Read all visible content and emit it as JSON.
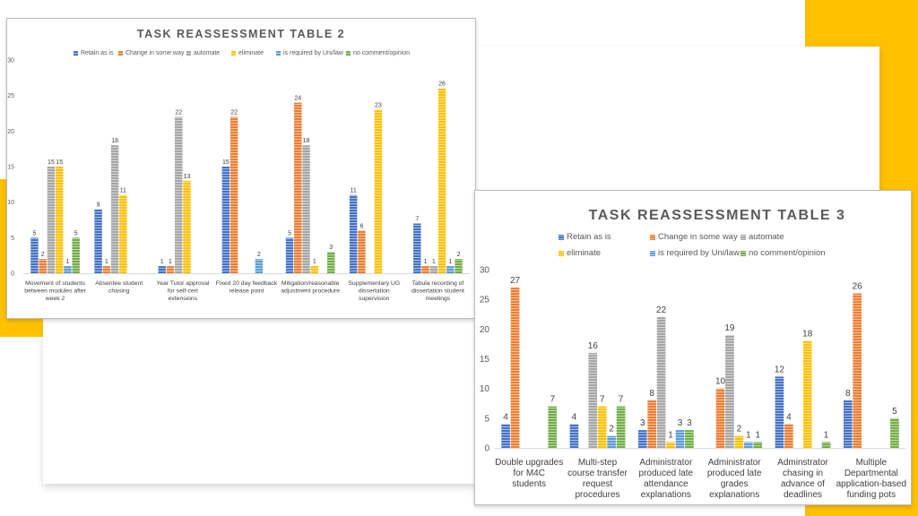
{
  "colors": {
    "retain": "#4472C4",
    "change": "#ED7D31",
    "automate": "#A5A5A5",
    "eliminate": "#FFC000",
    "required": "#5B9BD5",
    "nocomment": "#70AD47",
    "accent": "#FFC000"
  },
  "chart_data": [
    {
      "type": "bar",
      "title": "TASK REASSESSMENT TABLE 2",
      "xlabel": "",
      "ylabel": "",
      "ylim": [
        0,
        30
      ],
      "yticks": [
        0,
        5,
        10,
        15,
        20,
        25,
        30
      ],
      "grid": false,
      "legend_position": "top",
      "categories": [
        "Movement of students between modules after week 2",
        "Absentee student chasing",
        "Year Tutor approval for self-cert extensions",
        "Fixed 20 day feedback release point",
        "Mitigation/reasonable adjustment procedure",
        "Supplementary UG dissertation supervision",
        "Tabula recording of dissertation student meetings"
      ],
      "series": [
        {
          "name": "Retain as is",
          "values": [
            5,
            9,
            1,
            15,
            5,
            11,
            7
          ]
        },
        {
          "name": "Change in some way",
          "values": [
            2,
            1,
            1,
            22,
            24,
            6,
            1
          ]
        },
        {
          "name": "automate",
          "values": [
            15,
            18,
            22,
            null,
            18,
            null,
            1
          ]
        },
        {
          "name": "eliminate",
          "values": [
            15,
            11,
            13,
            null,
            1,
            23,
            26
          ]
        },
        {
          "name": "is required by Uni/law",
          "values": [
            1,
            null,
            null,
            2,
            null,
            null,
            1
          ]
        },
        {
          "name": "no comment/opinion",
          "values": [
            5,
            null,
            null,
            null,
            3,
            null,
            2
          ]
        }
      ]
    },
    {
      "type": "bar",
      "title": "TASK REASSESSMENT TABLE 3",
      "xlabel": "",
      "ylabel": "",
      "ylim": [
        0,
        30
      ],
      "yticks": [
        0,
        5,
        10,
        15,
        20,
        25,
        30
      ],
      "grid": false,
      "legend_position": "top",
      "categories": [
        "Double upgrades for M4C students",
        "Multi-step course transfer request procedures",
        "Administrator produced late attendance explanations",
        "Administrator produced late grades explanations",
        "Adminstrator chasing in advance of deadlines",
        "Multiple Departmental application-based funding pots"
      ],
      "series": [
        {
          "name": "Retain as is",
          "values": [
            4,
            4,
            3,
            null,
            12,
            8
          ]
        },
        {
          "name": "Change in some way",
          "values": [
            27,
            null,
            8,
            10,
            4,
            26
          ]
        },
        {
          "name": "automate",
          "values": [
            null,
            16,
            22,
            19,
            null,
            null
          ]
        },
        {
          "name": "eliminate",
          "values": [
            null,
            7,
            1,
            2,
            18,
            null
          ]
        },
        {
          "name": "is required by Uni/law",
          "values": [
            null,
            2,
            3,
            1,
            null,
            null
          ]
        },
        {
          "name": "no comment/opinion",
          "values": [
            7,
            7,
            3,
            1,
            1,
            5
          ]
        }
      ]
    }
  ]
}
